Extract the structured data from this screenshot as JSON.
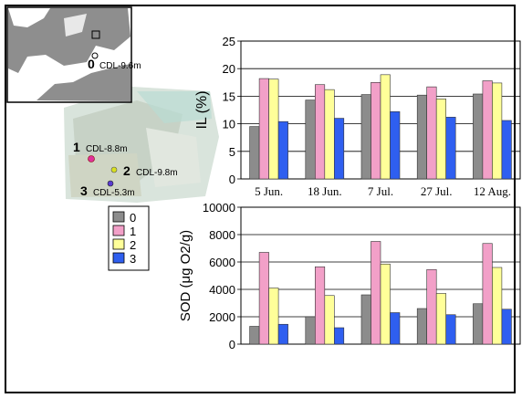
{
  "map": {
    "stations": [
      {
        "id": "0",
        "label": "CDL-9.6m"
      },
      {
        "id": "1",
        "label": "CDL-8.8m"
      },
      {
        "id": "2",
        "label": "CDL-9.8m"
      },
      {
        "id": "3",
        "label": "CDL-5.3m"
      }
    ]
  },
  "legend": [
    "0",
    "1",
    "2",
    "3"
  ],
  "colors": [
    "#8c8c8c",
    "#f2a0c8",
    "#ffff99",
    "#2f5ff0"
  ],
  "chart_data": [
    {
      "type": "bar",
      "ylabel": "IL (%)",
      "ylim": [
        0,
        25
      ],
      "yticks": [
        "0",
        "5",
        "10",
        "15",
        "20",
        "25"
      ],
      "categories": [
        "5 Jun.",
        "18 Jun.",
        "7 Jul.",
        "27 Jul.",
        "12 Aug."
      ],
      "series": [
        {
          "name": "0",
          "values": [
            9.5,
            14.3,
            15.3,
            15.2,
            15.4
          ]
        },
        {
          "name": "1",
          "values": [
            18.2,
            17.1,
            17.5,
            16.7,
            17.8
          ]
        },
        {
          "name": "2",
          "values": [
            18.1,
            16.2,
            18.9,
            14.5,
            17.4
          ]
        },
        {
          "name": "3",
          "values": [
            10.4,
            11.0,
            12.2,
            11.2,
            10.6
          ]
        }
      ]
    },
    {
      "type": "bar",
      "ylabel": "SOD (μg O2/g)",
      "ylim": [
        0,
        10000
      ],
      "yticks": [
        "0",
        "2000",
        "4000",
        "6000",
        "8000",
        "10000"
      ],
      "categories": [
        "5 Jun.",
        "18 Jun.",
        "7 Jul.",
        "27 Jul.",
        "12 Aug."
      ],
      "series": [
        {
          "name": "0",
          "values": [
            1300,
            2000,
            3600,
            2600,
            2950
          ]
        },
        {
          "name": "1",
          "values": [
            6700,
            5650,
            7500,
            5450,
            7350
          ]
        },
        {
          "name": "2",
          "values": [
            4100,
            3550,
            5850,
            3700,
            5600
          ]
        },
        {
          "name": "3",
          "values": [
            1450,
            1200,
            2300,
            2150,
            2550
          ]
        }
      ]
    }
  ]
}
